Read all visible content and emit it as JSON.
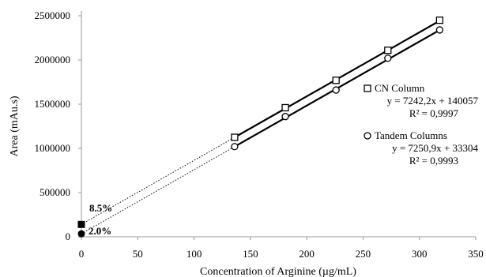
{
  "chart_data": {
    "type": "scatter",
    "xlabel": "Concentration of Arginine (µg/mL)",
    "ylabel": "Area (mAu.s)",
    "xlim": [
      0,
      350
    ],
    "ylim": [
      0,
      2500000
    ],
    "x_ticks": [
      0,
      50,
      100,
      150,
      200,
      250,
      300,
      350
    ],
    "y_ticks": [
      0,
      500000,
      1000000,
      1500000,
      2000000,
      2500000
    ],
    "x_tick_labels": [
      "0",
      "50",
      "100",
      "150",
      "200",
      "250",
      "300",
      "350"
    ],
    "y_tick_labels": [
      "0",
      "500000",
      "1000000",
      "1500000",
      "2000000",
      "2500000"
    ],
    "grid": false,
    "legend_position": "right",
    "series": [
      {
        "name": "CN Column",
        "marker": "square",
        "x": [
          136,
          181,
          226,
          272,
          318
        ],
        "y": [
          1125000,
          1460000,
          1770000,
          2110000,
          2450000
        ],
        "equation": "y = 7242,2x + 140057",
        "r2": "R² = 0,9997",
        "slope": 7242.2,
        "intercept": 140057,
        "intercept_label": "8.5%"
      },
      {
        "name": "Tandem Columns",
        "marker": "circle",
        "x": [
          136,
          181,
          226,
          272,
          318
        ],
        "y": [
          1020000,
          1360000,
          1660000,
          2020000,
          2340000
        ],
        "equation": "y = 7250,9x + 33304",
        "r2": "R² = 0,9993",
        "slope": 7250.9,
        "intercept": 33304,
        "intercept_label": "2.0%"
      }
    ]
  }
}
